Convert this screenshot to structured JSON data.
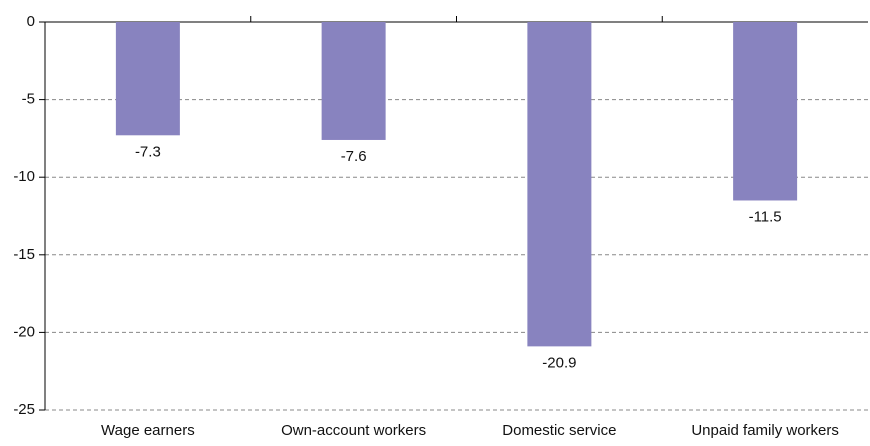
{
  "chart_data": {
    "type": "bar",
    "categories": [
      "Wage earners",
      "Own-account workers",
      "Domestic service",
      "Unpaid family workers"
    ],
    "values": [
      -7.3,
      -7.6,
      -20.9,
      -11.5
    ],
    "color": "#8883bf",
    "ylim": [
      -25,
      0
    ],
    "yticks": [
      0,
      -5,
      -10,
      -15,
      -20,
      -25
    ],
    "grid": true
  }
}
